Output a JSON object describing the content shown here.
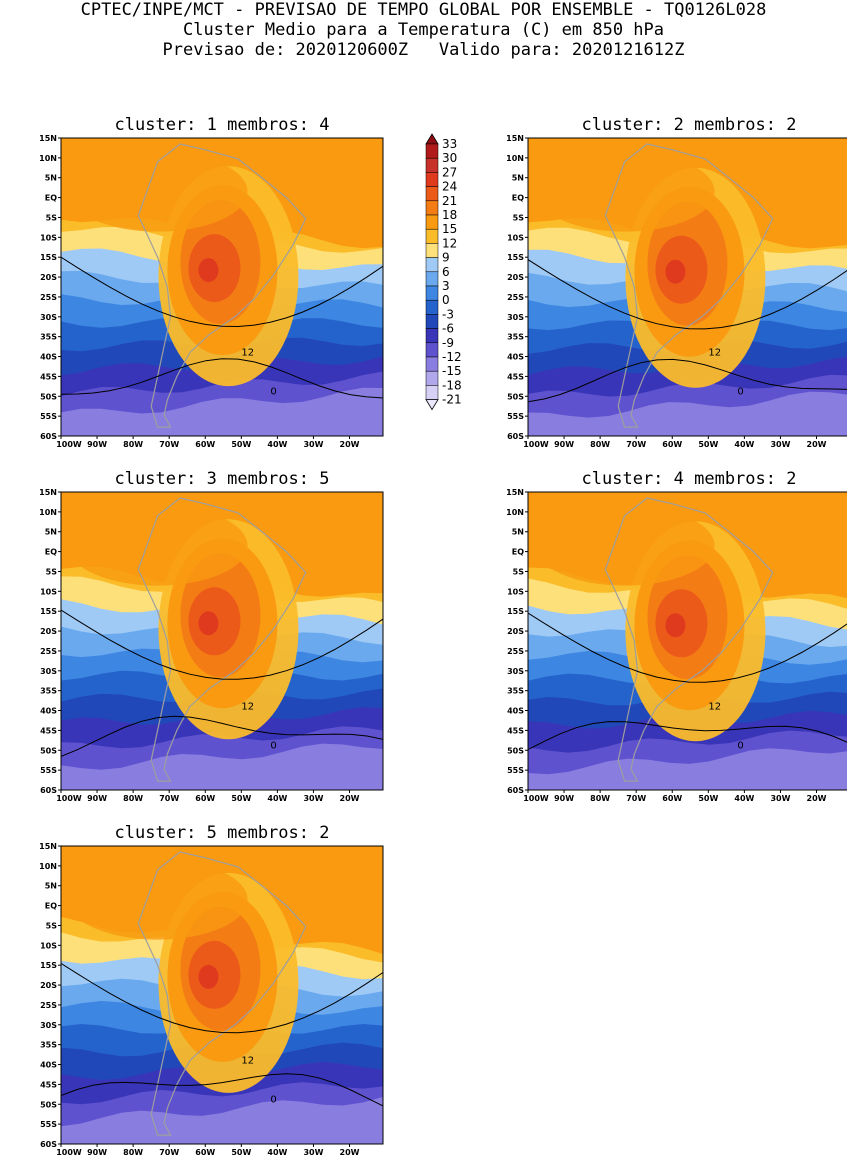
{
  "header": {
    "line1": "CPTEC/INPE/MCT - PREVISAO DE TEMPO GLOBAL POR ENSEMBLE - TQ0126L028",
    "line2": "Cluster Medio para a Temperatura (C) em 850 hPa",
    "line3": "Previsao de: 2020120600Z   Valido para: 2020121612Z"
  },
  "lat_labels": [
    "15N",
    "10N",
    "5N",
    "EQ",
    "5S",
    "10S",
    "15S",
    "20S",
    "25S",
    "30S",
    "35S",
    "40S",
    "45S",
    "50S",
    "55S",
    "60S"
  ],
  "lon_labels": [
    "100W",
    "90W",
    "80W",
    "70W",
    "60W",
    "50W",
    "40W",
    "30W",
    "20W"
  ],
  "legend": {
    "levels": [
      "33",
      "30",
      "27",
      "24",
      "21",
      "18",
      "15",
      "12",
      "9",
      "6",
      "3",
      "0",
      "-3",
      "-6",
      "-9",
      "-12",
      "-15",
      "-18",
      "-21"
    ],
    "colors": [
      "#8f0d12",
      "#b01a1a",
      "#c8302a",
      "#e03a1e",
      "#ec5a1a",
      "#f47c14",
      "#f99a10",
      "#fbbc2a",
      "#fde07a",
      "#9fcaf6",
      "#6aa9ee",
      "#3d86e2",
      "#2563cc",
      "#2148b8",
      "#3935b8",
      "#5f52cf",
      "#8a7de0",
      "#b1a7ec",
      "#d6cff6",
      "#ece8fc"
    ]
  },
  "contour_labels": {
    "warm": "12",
    "cold": "0"
  },
  "panels": [
    {
      "title": "cluster: 1   membros: 4",
      "warm_shift": 0.0
    },
    {
      "title": "cluster: 2   membros: 2",
      "warm_shift": 0.4
    },
    {
      "title": "cluster: 3   membros: 5",
      "warm_shift": -0.2
    },
    {
      "title": "cluster: 4   membros: 2",
      "warm_shift": 0.3
    },
    {
      "title": "cluster: 5   membros: 2",
      "warm_shift": -0.3
    }
  ]
}
